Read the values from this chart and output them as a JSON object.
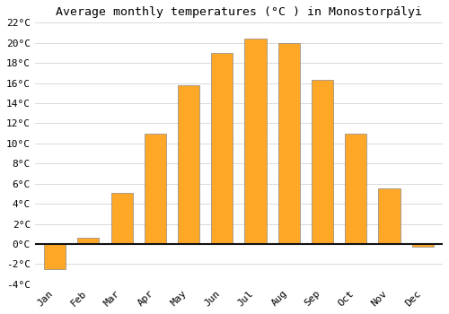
{
  "title": "Average monthly temperatures (°C ) in Monostorpályi",
  "months": [
    "Jan",
    "Feb",
    "Mar",
    "Apr",
    "May",
    "Jun",
    "Jul",
    "Aug",
    "Sep",
    "Oct",
    "Nov",
    "Dec"
  ],
  "values": [
    -2.5,
    0.6,
    5.1,
    11.0,
    15.8,
    19.0,
    20.4,
    20.0,
    16.3,
    11.0,
    5.5,
    -0.3
  ],
  "bar_color": "#FFA726",
  "bar_edge_color": "#888888",
  "background_color": "#ffffff",
  "ylim": [
    -4,
    22
  ],
  "yticks": [
    -4,
    -2,
    0,
    2,
    4,
    6,
    8,
    10,
    12,
    14,
    16,
    18,
    20,
    22
  ],
  "title_fontsize": 9.5,
  "tick_fontsize": 8,
  "grid_color": "#cccccc",
  "zero_line_color": "#111111"
}
